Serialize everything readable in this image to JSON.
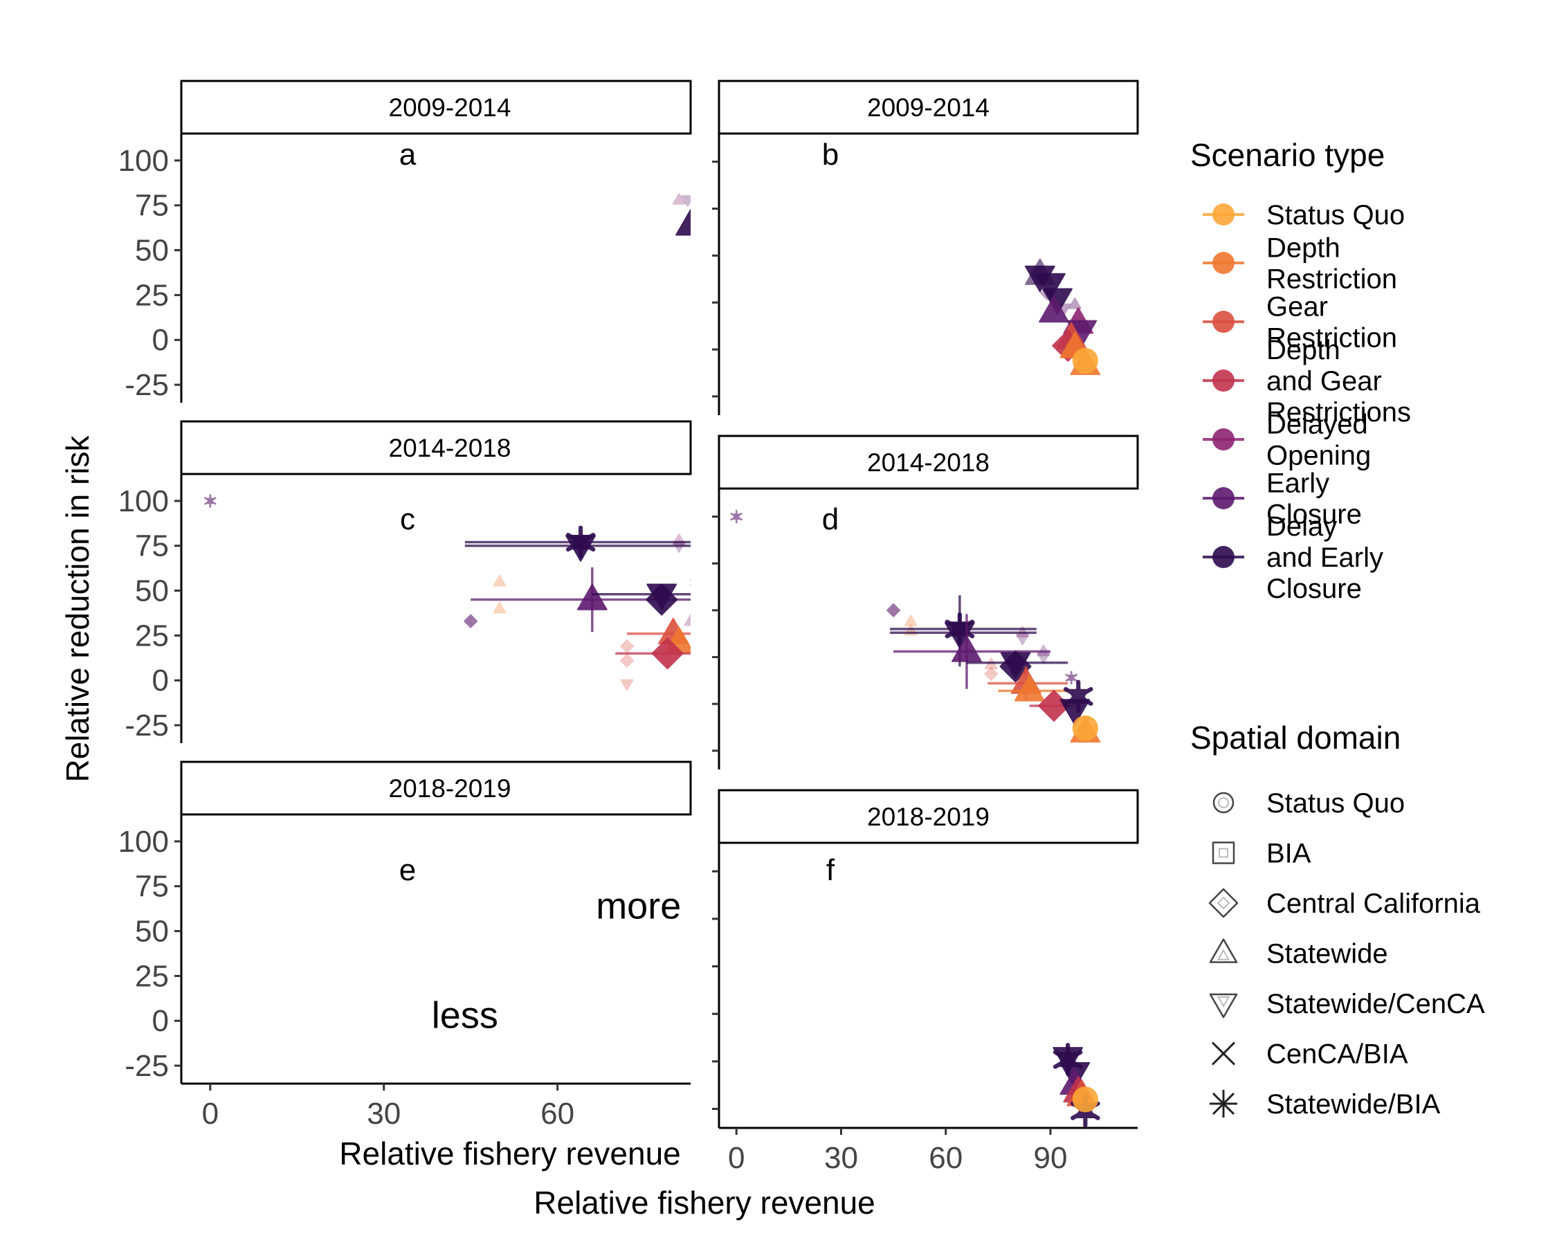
{
  "figure": {
    "y_axis_title": "Relative reduction in risk",
    "x_axis_title": "Relative fishery revenue",
    "x_axis_title_inner": "Relative fishery revenue"
  },
  "legend": {
    "scenario": {
      "title": "Scenario type",
      "items": [
        {
          "lines": [
            "Status Quo"
          ],
          "color": "#FCA636"
        },
        {
          "lines": [
            "Depth",
            "Restriction"
          ],
          "color": "#F0772F"
        },
        {
          "lines": [
            "Gear",
            "Restriction"
          ],
          "color": "#DA4F3F"
        },
        {
          "lines": [
            "Depth",
            "and Gear",
            "Restrictions"
          ],
          "color": "#C2334C"
        },
        {
          "lines": [
            "Delayed",
            "Opening"
          ],
          "color": "#8E2472"
        },
        {
          "lines": [
            "Early",
            "Closure"
          ],
          "color": "#5E1A6E"
        },
        {
          "lines": [
            "Delay",
            "and Early",
            "Closure"
          ],
          "color": "#2E0B4E"
        }
      ]
    },
    "domain": {
      "title": "Spatial domain",
      "items": [
        {
          "label": "Status Quo",
          "shape": "circle"
        },
        {
          "label": "BIA",
          "shape": "square"
        },
        {
          "label": "Central California",
          "shape": "diamond"
        },
        {
          "label": "Statewide",
          "shape": "triangle-up"
        },
        {
          "label": "Statewide/CenCA",
          "shape": "triangle-down"
        },
        {
          "label": "CenCA/BIA",
          "shape": "cross"
        },
        {
          "label": "Statewide/BIA",
          "shape": "asterisk"
        }
      ]
    }
  },
  "chart_data": [
    {
      "type": "scatter",
      "panel": "a",
      "strip": "2009-2014",
      "xlim": [
        -5,
        83
      ],
      "ylim": [
        -35,
        115
      ],
      "yticks": [
        "100",
        "75",
        "50",
        "25",
        "0",
        "-25"
      ],
      "y_tick_values": [
        100,
        75,
        50,
        25,
        0,
        -25
      ],
      "x_tick_labels_shown": false,
      "points": [
        {
          "x": 81,
          "y": 78,
          "shape": "triangle-up",
          "scenario": 4,
          "size": "small",
          "alpha": 0.3
        },
        {
          "x": 82.5,
          "y": 78,
          "shape": "triangle-down",
          "scenario": 5,
          "size": "small",
          "alpha": 0.3
        },
        {
          "x": 83,
          "y": 64,
          "shape": "triangle-up",
          "scenario": 6,
          "size": "large",
          "alpha": 0.9
        }
      ]
    },
    {
      "type": "scatter",
      "panel": "b",
      "strip": "2009-2014",
      "xlim": [
        -5,
        115
      ],
      "ylim": [
        -35,
        115
      ],
      "y_tick_labels_shown": false,
      "x_tick_labels_shown": false,
      "points": [
        {
          "x": 87,
          "y": 39,
          "shape": "triangle-down",
          "scenario": 6,
          "size": "large",
          "alpha": 0.9
        },
        {
          "x": 87,
          "y": 40,
          "shape": "triangle-up",
          "scenario": 6,
          "size": "large",
          "alpha": 0.6
        },
        {
          "x": 90,
          "y": 35,
          "shape": "triangle-down",
          "scenario": 6,
          "size": "large",
          "alpha": 0.9
        },
        {
          "x": 89,
          "y": 30,
          "shape": "diamond",
          "scenario": 5,
          "size": "small",
          "alpha": 0.4
        },
        {
          "x": 92,
          "y": 27,
          "shape": "triangle-down",
          "scenario": 6,
          "size": "large",
          "alpha": 0.9
        },
        {
          "x": 91,
          "y": 20,
          "shape": "triangle-up",
          "scenario": 5,
          "size": "large",
          "alpha": 0.9
        },
        {
          "x": 94,
          "y": 22,
          "shape": "triangle-down",
          "scenario": 5,
          "size": "small",
          "alpha": 0.4
        },
        {
          "x": 97,
          "y": 24,
          "shape": "triangle-up",
          "scenario": 5,
          "size": "small",
          "alpha": 0.4
        },
        {
          "x": 98,
          "y": 14,
          "shape": "triangle-up",
          "scenario": 4,
          "size": "large",
          "alpha": 0.9
        },
        {
          "x": 99,
          "y": 10,
          "shape": "triangle-down",
          "scenario": 5,
          "size": "large",
          "alpha": 0.9
        },
        {
          "x": 96,
          "y": 6,
          "shape": "triangle-up",
          "scenario": 2,
          "size": "large",
          "alpha": 0.9
        },
        {
          "x": 95,
          "y": 2,
          "shape": "diamond",
          "scenario": 3,
          "size": "large",
          "alpha": 0.9
        },
        {
          "x": 97,
          "y": 1,
          "shape": "triangle-up",
          "scenario": 1,
          "size": "large",
          "alpha": 0.9
        },
        {
          "x": 100,
          "y": -8,
          "shape": "triangle-up",
          "scenario": 1,
          "size": "large",
          "alpha": 0.9
        },
        {
          "x": 100,
          "y": -6,
          "shape": "circle",
          "scenario": 0,
          "size": "large",
          "alpha": 0.9
        }
      ]
    },
    {
      "type": "scatter",
      "panel": "c",
      "strip": "2014-2018",
      "xlim": [
        -5,
        83
      ],
      "ylim": [
        -35,
        115
      ],
      "yticks": [
        "100",
        "75",
        "50",
        "25",
        "0",
        "-25"
      ],
      "y_tick_values": [
        100,
        75,
        50,
        25,
        0,
        -25
      ],
      "x_tick_labels_shown": false,
      "points": [
        {
          "x": 0,
          "y": 100,
          "shape": "asterisk",
          "scenario": 5,
          "size": "small",
          "alpha": 0.6,
          "xerr": [
            0,
            0
          ]
        },
        {
          "x": 64,
          "y": 77,
          "shape": "asterisk",
          "scenario": 6,
          "size": "large",
          "alpha": 0.9,
          "xerr": [
            44,
            83
          ]
        },
        {
          "x": 64,
          "y": 75,
          "shape": "triangle-down",
          "scenario": 6,
          "size": "large",
          "alpha": 0.9,
          "xerr": [
            44,
            83
          ]
        },
        {
          "x": 81,
          "y": 78,
          "shape": "triangle-up",
          "scenario": 4,
          "size": "small",
          "alpha": 0.3
        },
        {
          "x": 81,
          "y": 75,
          "shape": "triangle-down",
          "scenario": 5,
          "size": "small",
          "alpha": 0.3
        },
        {
          "x": 84,
          "y": 58,
          "shape": "triangle-up",
          "scenario": 5,
          "size": "small",
          "alpha": 0.3
        },
        {
          "x": 84,
          "y": 51,
          "shape": "triangle-down",
          "scenario": 5,
          "size": "small",
          "alpha": 0.3
        },
        {
          "x": 50,
          "y": 55,
          "shape": "triangle-up",
          "scenario": 1,
          "size": "small",
          "alpha": 0.3
        },
        {
          "x": 50,
          "y": 40,
          "shape": "triangle-up",
          "scenario": 1,
          "size": "small",
          "alpha": 0.3
        },
        {
          "x": 66,
          "y": 45,
          "shape": "triangle-up",
          "scenario": 5,
          "size": "large",
          "alpha": 0.9,
          "xerr": [
            45,
            83
          ],
          "yerr": [
            27,
            63
          ]
        },
        {
          "x": 78,
          "y": 48,
          "shape": "triangle-down",
          "scenario": 6,
          "size": "large",
          "alpha": 0.9,
          "xerr": [
            66,
            83
          ]
        },
        {
          "x": 78,
          "y": 45,
          "shape": "diamond",
          "scenario": 6,
          "size": "large",
          "alpha": 0.9
        },
        {
          "x": 45,
          "y": 33,
          "shape": "diamond",
          "scenario": 5,
          "size": "small",
          "alpha": 0.6
        },
        {
          "x": 83,
          "y": 33,
          "shape": "triangle-up",
          "scenario": 4,
          "size": "small",
          "alpha": 0.3
        },
        {
          "x": 80,
          "y": 26,
          "shape": "triangle-up",
          "scenario": 2,
          "size": "large",
          "alpha": 0.9,
          "xerr": [
            72,
            83
          ]
        },
        {
          "x": 81,
          "y": 21,
          "shape": "triangle-up",
          "scenario": 1,
          "size": "large",
          "alpha": 0.9
        },
        {
          "x": 79,
          "y": 15,
          "shape": "diamond",
          "scenario": 3,
          "size": "large",
          "alpha": 0.9,
          "xerr": [
            70,
            83
          ]
        },
        {
          "x": 72,
          "y": 19,
          "shape": "diamond",
          "scenario": 2,
          "size": "small",
          "alpha": 0.3
        },
        {
          "x": 72,
          "y": 11,
          "shape": "diamond",
          "scenario": 2,
          "size": "small",
          "alpha": 0.3
        },
        {
          "x": 72,
          "y": -2,
          "shape": "triangle-down",
          "scenario": 2,
          "size": "small",
          "alpha": 0.3
        }
      ]
    },
    {
      "type": "scatter",
      "panel": "d",
      "strip": "2014-2018",
      "xlim": [
        -5,
        115
      ],
      "ylim": [
        -35,
        115
      ],
      "y_tick_labels_shown": false,
      "x_tick_labels_shown": false,
      "points": [
        {
          "x": 0,
          "y": 100,
          "shape": "asterisk",
          "scenario": 5,
          "size": "small",
          "alpha": 0.6
        },
        {
          "x": 45,
          "y": 50,
          "shape": "diamond",
          "scenario": 5,
          "size": "small",
          "alpha": 0.6
        },
        {
          "x": 50,
          "y": 44,
          "shape": "triangle-up",
          "scenario": 1,
          "size": "small",
          "alpha": 0.3
        },
        {
          "x": 50,
          "y": 39,
          "shape": "triangle-up",
          "scenario": 1,
          "size": "small",
          "alpha": 0.3
        },
        {
          "x": 64,
          "y": 40,
          "shape": "asterisk",
          "scenario": 6,
          "size": "large",
          "alpha": 0.9,
          "xerr": [
            44,
            86
          ],
          "yerr": [
            20,
            58
          ]
        },
        {
          "x": 64,
          "y": 38,
          "shape": "triangle-down",
          "scenario": 6,
          "size": "large",
          "alpha": 0.9,
          "xerr": [
            44,
            86
          ]
        },
        {
          "x": 66,
          "y": 28,
          "shape": "triangle-up",
          "scenario": 5,
          "size": "large",
          "alpha": 0.9,
          "xerr": [
            45,
            90
          ],
          "yerr": [
            8,
            48
          ]
        },
        {
          "x": 82,
          "y": 38,
          "shape": "triangle-up",
          "scenario": 4,
          "size": "small",
          "alpha": 0.3
        },
        {
          "x": 82,
          "y": 35,
          "shape": "triangle-down",
          "scenario": 5,
          "size": "small",
          "alpha": 0.3
        },
        {
          "x": 88,
          "y": 28,
          "shape": "triangle-up",
          "scenario": 5,
          "size": "small",
          "alpha": 0.3
        },
        {
          "x": 88,
          "y": 25,
          "shape": "triangle-down",
          "scenario": 5,
          "size": "small",
          "alpha": 0.3
        },
        {
          "x": 80,
          "y": 22,
          "shape": "triangle-down",
          "scenario": 6,
          "size": "large",
          "alpha": 0.9,
          "xerr": [
            66,
            95
          ]
        },
        {
          "x": 80,
          "y": 20,
          "shape": "diamond",
          "scenario": 6,
          "size": "large",
          "alpha": 0.9
        },
        {
          "x": 73,
          "y": 21,
          "shape": "triangle-up",
          "scenario": 2,
          "size": "small",
          "alpha": 0.3
        },
        {
          "x": 73,
          "y": 16,
          "shape": "diamond",
          "scenario": 2,
          "size": "small",
          "alpha": 0.3
        },
        {
          "x": 83,
          "y": 11,
          "shape": "triangle-up",
          "scenario": 2,
          "size": "large",
          "alpha": 0.9,
          "xerr": [
            72,
            95
          ],
          "yerr": [
            2,
            20
          ]
        },
        {
          "x": 84,
          "y": 7,
          "shape": "triangle-up",
          "scenario": 1,
          "size": "large",
          "alpha": 0.9,
          "xerr": [
            75,
            95
          ]
        },
        {
          "x": 91,
          "y": -1,
          "shape": "diamond",
          "scenario": 3,
          "size": "large",
          "alpha": 0.9,
          "xerr": [
            84,
            97
          ]
        },
        {
          "x": 96,
          "y": 14,
          "shape": "asterisk",
          "scenario": 5,
          "size": "small",
          "alpha": 0.6
        },
        {
          "x": 98,
          "y": 4,
          "shape": "asterisk",
          "scenario": 6,
          "size": "large",
          "alpha": 0.9
        },
        {
          "x": 97,
          "y": -3,
          "shape": "triangle-down",
          "scenario": 6,
          "size": "large",
          "alpha": 0.9
        },
        {
          "x": 100,
          "y": -15,
          "shape": "triangle-up",
          "scenario": 1,
          "size": "large",
          "alpha": 0.9
        },
        {
          "x": 100,
          "y": -13,
          "shape": "circle",
          "scenario": 0,
          "size": "large",
          "alpha": 0.9
        }
      ]
    },
    {
      "type": "scatter",
      "panel": "e",
      "strip": "2018-2019",
      "xlim": [
        -5,
        83
      ],
      "ylim": [
        -35,
        115
      ],
      "yticks": [
        "100",
        "75",
        "50",
        "25",
        "0",
        "-25"
      ],
      "y_tick_values": [
        100,
        75,
        50,
        25,
        0,
        -25
      ],
      "xticks": [
        "0",
        "30",
        "60"
      ],
      "x_tick_values": [
        0,
        30,
        60
      ],
      "annotations": [
        {
          "text": "more",
          "x": 74,
          "y": 57
        },
        {
          "text": "less",
          "x": 44,
          "y": -4
        }
      ],
      "points": []
    },
    {
      "type": "scatter",
      "panel": "f",
      "strip": "2018-2019",
      "xlim": [
        -5,
        115
      ],
      "ylim": [
        -35,
        115
      ],
      "y_tick_labels_shown": false,
      "xticks": [
        "0",
        "30",
        "60",
        "90"
      ],
      "x_tick_values": [
        0,
        30,
        60,
        90
      ],
      "points": [
        {
          "x": 95,
          "y": 2,
          "shape": "triangle-down",
          "scenario": 6,
          "size": "large",
          "alpha": 0.9
        },
        {
          "x": 95,
          "y": 1,
          "shape": "asterisk",
          "scenario": 6,
          "size": "large",
          "alpha": 0.9
        },
        {
          "x": 97,
          "y": -6,
          "shape": "triangle-down",
          "scenario": 6,
          "size": "large",
          "alpha": 0.9
        },
        {
          "x": 97,
          "y": -12,
          "shape": "triangle-up",
          "scenario": 5,
          "size": "large",
          "alpha": 0.9
        },
        {
          "x": 98,
          "y": -16,
          "shape": "triangle-up",
          "scenario": 3,
          "size": "large",
          "alpha": 0.9
        },
        {
          "x": 99,
          "y": -18,
          "shape": "triangle-up",
          "scenario": 2,
          "size": "large",
          "alpha": 0.9
        },
        {
          "x": 100,
          "y": -26,
          "shape": "asterisk",
          "scenario": 6,
          "size": "large",
          "alpha": 0.9
        },
        {
          "x": 100,
          "y": -20,
          "shape": "circle",
          "scenario": 0,
          "size": "large",
          "alpha": 0.9
        }
      ]
    }
  ]
}
